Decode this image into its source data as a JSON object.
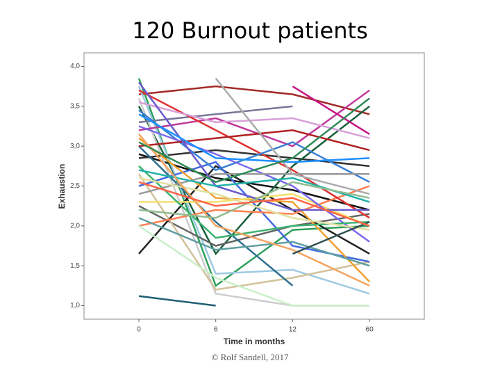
{
  "chart_data": {
    "type": "line",
    "title": "120 Burnout patients",
    "y_label": "Exhaustion",
    "x_label": "Time in months",
    "footer": "© Rolf Sandell, 2017",
    "categories": [
      "0",
      "6",
      "12",
      "60"
    ],
    "ylim": [
      0.83,
      4.17
    ],
    "yticks": [
      {
        "value": 1,
        "label": "1,0"
      },
      {
        "value": 1.5,
        "label": "1,5"
      },
      {
        "value": 2,
        "label": "2,0"
      },
      {
        "value": 2.5,
        "label": "2,5"
      },
      {
        "value": 3,
        "label": "3,0"
      },
      {
        "value": 3.5,
        "label": "3,5"
      },
      {
        "value": 4,
        "label": "4,0"
      }
    ],
    "series": [
      {
        "color": "#a52a2a",
        "values": [
          3.65,
          3.75,
          3.65,
          3.4
        ]
      },
      {
        "color": "#1f5f74",
        "values": [
          1.12,
          1.0,
          null,
          null
        ]
      },
      {
        "color": "#111111",
        "values": [
          2.9,
          2.6,
          2.45,
          2.2
        ]
      },
      {
        "color": "#333333",
        "values": [
          2.85,
          2.95,
          2.85,
          2.75
        ]
      },
      {
        "color": "#2ca05a",
        "values": [
          3.85,
          1.25,
          1.95,
          2.0
        ]
      },
      {
        "color": "#1a5e3a",
        "values": [
          3.5,
          1.65,
          2.75,
          3.5
        ]
      },
      {
        "color": "#cccccc",
        "values": [
          3.6,
          1.15,
          1.0,
          1.0
        ]
      },
      {
        "color": "#9ecae1",
        "values": [
          3.75,
          1.4,
          1.45,
          1.15
        ]
      },
      {
        "color": "#666666",
        "values": [
          2.25,
          1.75,
          2.0,
          2.15
        ]
      },
      {
        "color": "#777799",
        "values": [
          3.3,
          3.4,
          3.5,
          null
        ]
      },
      {
        "color": "#c0399a",
        "values": [
          3.2,
          3.35,
          3.0,
          3.7
        ]
      },
      {
        "color": "#d2c29a",
        "values": [
          2.65,
          1.2,
          1.35,
          1.55
        ]
      },
      {
        "color": "#222222",
        "values": [
          1.65,
          2.75,
          2.2,
          1.65
        ]
      },
      {
        "color": "#2b6f8f",
        "values": [
          3.0,
          2.05,
          1.25,
          null
        ]
      },
      {
        "color": "#4169e1",
        "values": [
          2.5,
          2.8,
          1.75,
          1.55
        ]
      },
      {
        "color": "#f0a030",
        "values": [
          3.1,
          2.35,
          2.3,
          1.3
        ]
      },
      {
        "color": "#ff7f50",
        "values": [
          2.0,
          2.2,
          2.15,
          2.5
        ]
      },
      {
        "color": "#e03030",
        "values": [
          3.7,
          3.2,
          2.7,
          2.1
        ]
      },
      {
        "color": "#3a7fd5",
        "values": [
          3.45,
          2.7,
          3.05,
          2.55
        ]
      },
      {
        "color": "#f5e06a",
        "values": [
          2.3,
          2.3,
          2.4,
          2.0
        ]
      },
      {
        "color": "#7b68ee",
        "values": [
          3.25,
          2.9,
          2.5,
          1.8
        ]
      },
      {
        "color": "#3cb371",
        "values": [
          2.75,
          1.85,
          2.0,
          2.05
        ]
      },
      {
        "color": "#d8a0d8",
        "values": [
          3.55,
          3.3,
          3.35,
          3.1
        ]
      },
      {
        "color": "#b22222",
        "values": [
          3.0,
          3.1,
          3.2,
          2.95
        ]
      },
      {
        "color": "#5f9ea0",
        "values": [
          2.1,
          1.7,
          1.8,
          1.5
        ]
      },
      {
        "color": "#999999",
        "values": [
          2.4,
          2.65,
          2.65,
          2.65
        ]
      },
      {
        "color": "#6a5acd",
        "values": [
          3.8,
          2.5,
          2.2,
          2.2
        ]
      },
      {
        "color": "#aaaaaa",
        "values": [
          null,
          3.85,
          2.65,
          2.4
        ]
      },
      {
        "color": "#c71585",
        "values": [
          null,
          null,
          3.75,
          3.15
        ]
      },
      {
        "color": "#c8f0c8",
        "values": [
          2.0,
          1.35,
          1.0,
          1.0
        ]
      },
      {
        "color": "#e0e0a0",
        "values": [
          2.6,
          2.4,
          2.1,
          1.95
        ]
      },
      {
        "color": "#1e90ff",
        "values": [
          3.4,
          2.85,
          2.8,
          2.85
        ]
      },
      {
        "color": "#20b2aa",
        "values": [
          2.7,
          2.5,
          2.6,
          2.3
        ]
      },
      {
        "color": "#f4a460",
        "values": [
          3.15,
          2.0,
          1.7,
          1.25
        ]
      },
      {
        "color": "#8fbc8f",
        "values": [
          2.2,
          2.1,
          2.55,
          2.35
        ]
      },
      {
        "color": "#2f4f4f",
        "values": [
          null,
          null,
          1.65,
          2.05
        ]
      },
      {
        "color": "#2e8b57",
        "values": [
          3.05,
          2.55,
          2.85,
          3.6
        ]
      },
      {
        "color": "#ff6347",
        "values": [
          2.55,
          2.25,
          2.35,
          2.0
        ]
      }
    ]
  }
}
